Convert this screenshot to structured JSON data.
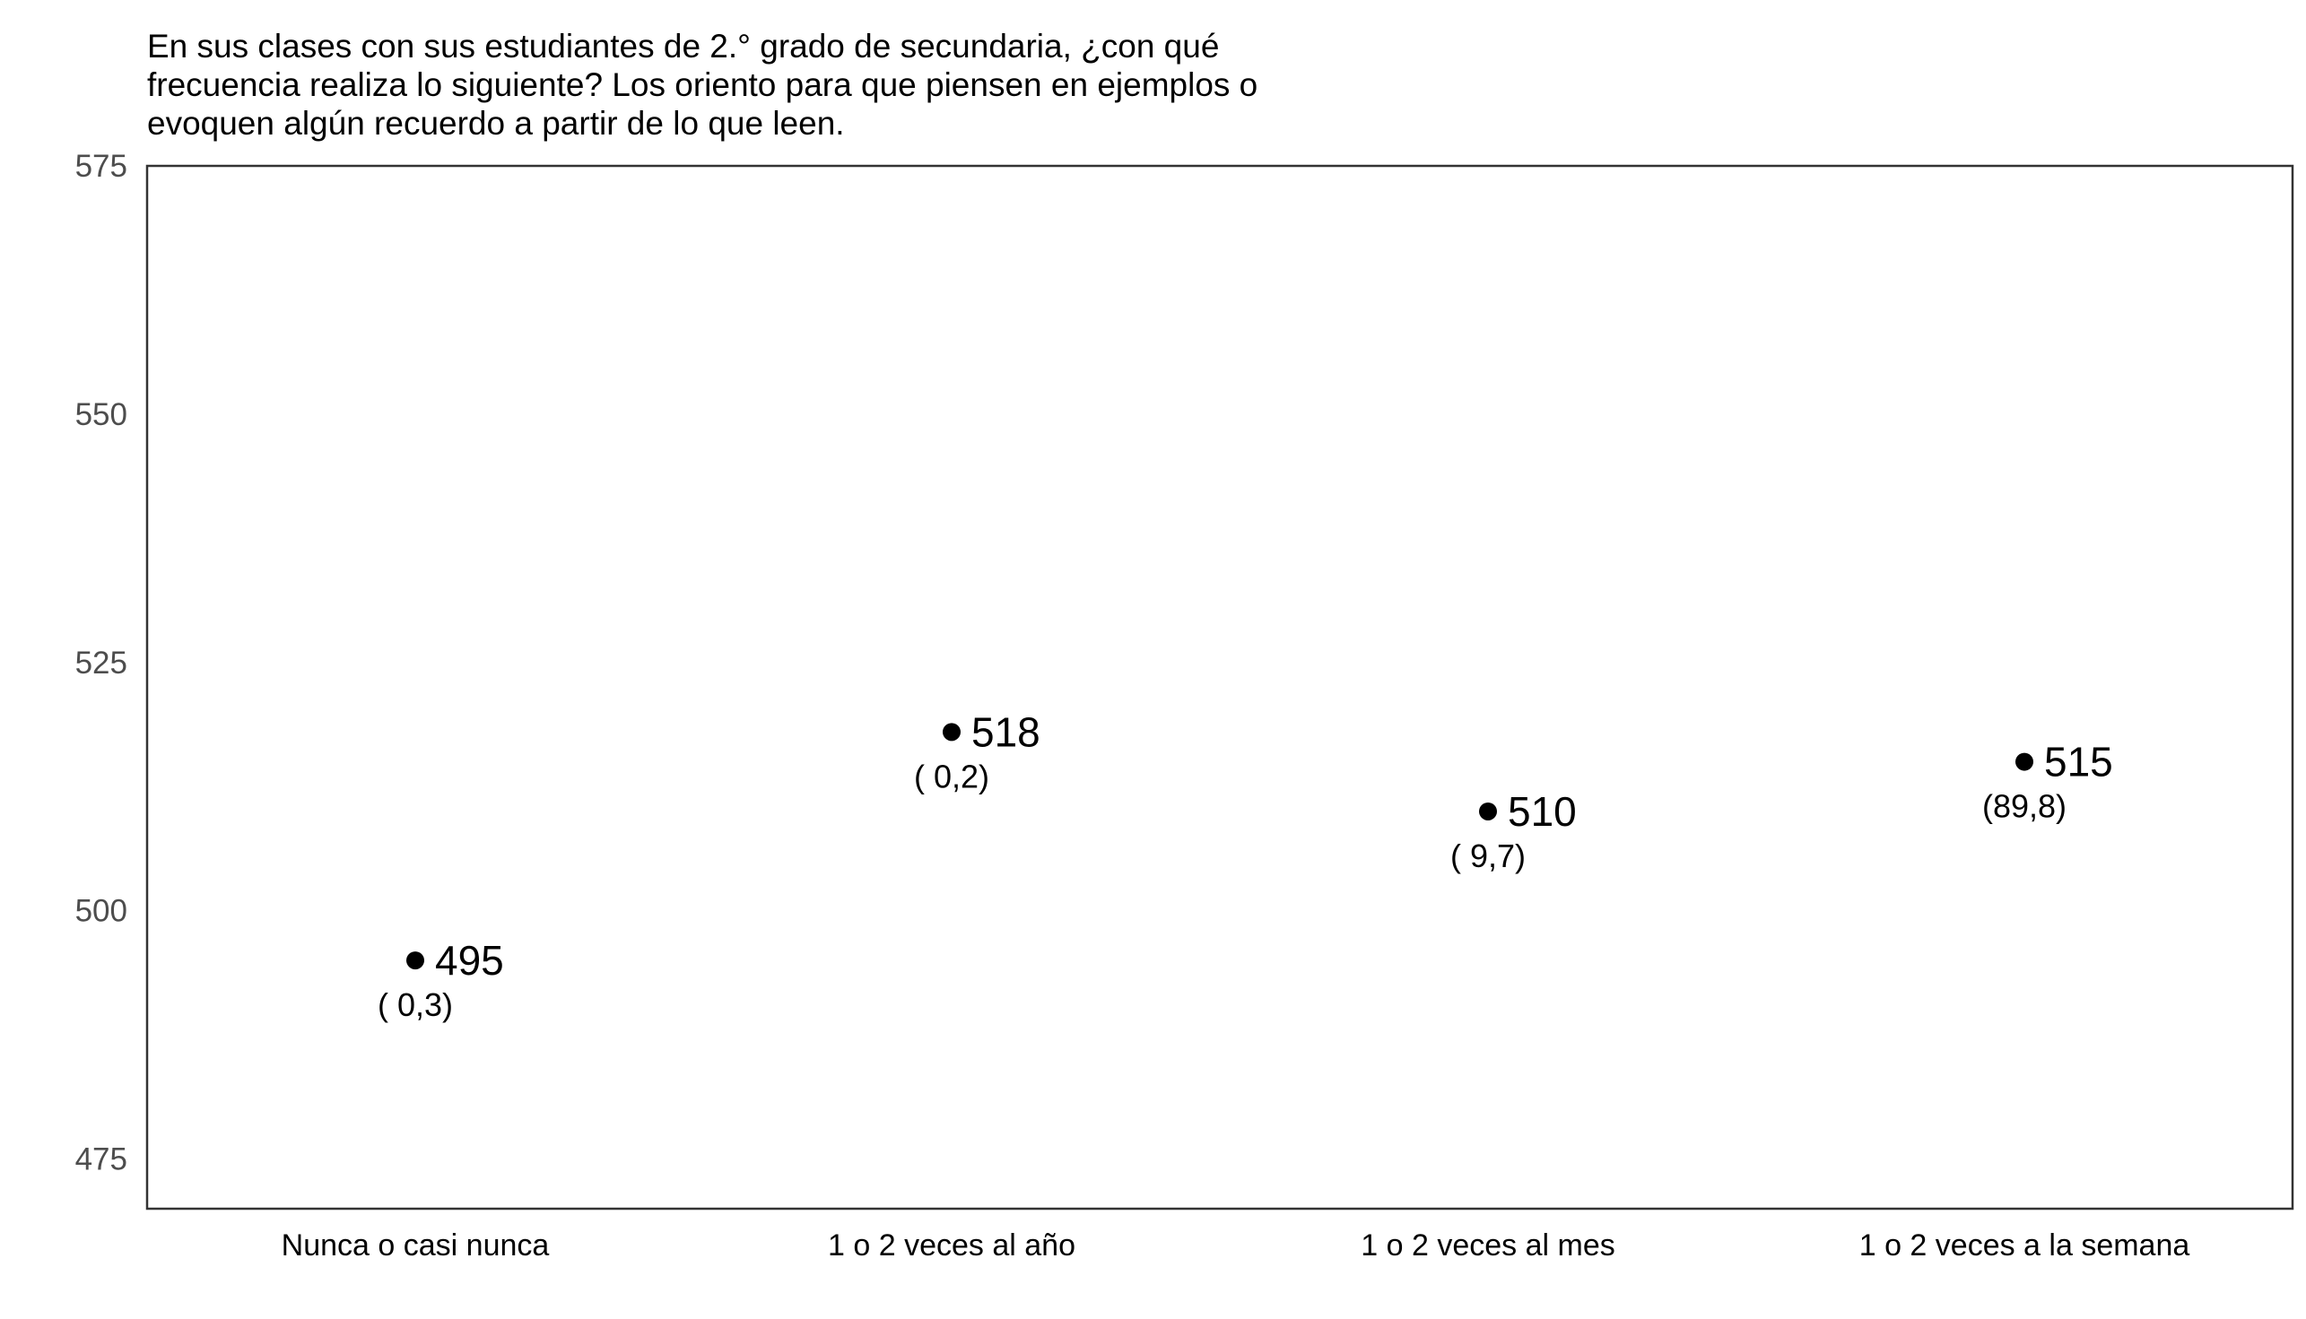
{
  "chart_data": {
    "type": "scatter",
    "title_lines": [
      "En sus clases con sus estudiantes de 2.° grado de secundaria, ¿con qué",
      "frecuencia realiza lo siguiente? Los oriento para que piensen en ejemplos o",
      "evoquen algún recuerdo a partir de lo que leen."
    ],
    "categories": [
      "Nunca o casi nunca",
      "1 o 2 veces al año",
      "1 o 2 veces al mes",
      "1 o 2 veces a la semana"
    ],
    "values": [
      495,
      518,
      510,
      515
    ],
    "value_labels": [
      "495",
      "518",
      "510",
      "515"
    ],
    "percent_labels": [
      "( 0,3)",
      "( 0,2)",
      "( 9,7)",
      "(89,8)"
    ],
    "ylim": [
      470,
      575
    ],
    "yticks": [
      475,
      500,
      525,
      550,
      575
    ],
    "grid": false,
    "legend": "none",
    "point_color": "#000000"
  }
}
